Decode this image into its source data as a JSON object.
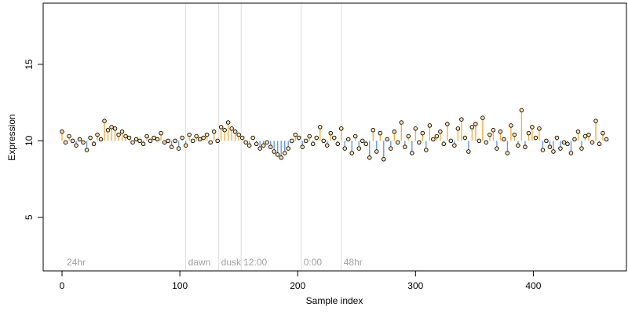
{
  "chart_data": {
    "type": "scatter",
    "title": "",
    "xlabel": "Sample index",
    "ylabel": "Expression",
    "xlim": [
      -16,
      479
    ],
    "ylim": [
      1.5,
      19.0
    ],
    "baseline": 10,
    "x_ticks": [
      0,
      100,
      200,
      300,
      400
    ],
    "x_tick_labels": [
      "0",
      "100",
      "200",
      "300",
      "400"
    ],
    "y_ticks": [
      5,
      10,
      15
    ],
    "y_tick_labels": [
      "5",
      "10",
      "15"
    ],
    "grid": false,
    "colors": {
      "above_baseline": "#F5B041",
      "below_baseline": "#6A9BE0",
      "point_fill": "#FFE3B3",
      "point_stroke": "#000000",
      "marker_line": "#DDDDDD",
      "marker_text": "#A0A0A0"
    },
    "annotations": [
      {
        "x": 2,
        "line": false,
        "label": "24hr"
      },
      {
        "x": 105,
        "line": true,
        "label": "dawn"
      },
      {
        "x": 133,
        "line": true,
        "label": "dusk"
      },
      {
        "x": 152,
        "line": true,
        "label": "12:00"
      },
      {
        "x": 203,
        "line": true,
        "label": "0:00"
      },
      {
        "x": 237,
        "line": true,
        "label": "48hr"
      }
    ],
    "series": [
      {
        "x": [
          0,
          3,
          6,
          9,
          12,
          15,
          18,
          21,
          24,
          27,
          30,
          33,
          36,
          39,
          42,
          45,
          48,
          51,
          54,
          57,
          60,
          63,
          66,
          69,
          72,
          75,
          78,
          81,
          84,
          87,
          90,
          93,
          96,
          99,
          102,
          105,
          108,
          111,
          114,
          117,
          120,
          123,
          126,
          129,
          132,
          135,
          138,
          141,
          144,
          147,
          150,
          153,
          156,
          159,
          162,
          165,
          168,
          171,
          174,
          177,
          180,
          183,
          186,
          189,
          192,
          195,
          198,
          201,
          204,
          207,
          210,
          213,
          216,
          219,
          222,
          225,
          228,
          231,
          234,
          237,
          240,
          243,
          246,
          249,
          252,
          255,
          258,
          261,
          264,
          267,
          270,
          273,
          276,
          279,
          282,
          285,
          288,
          291,
          294,
          297,
          300,
          303,
          306,
          309,
          312,
          315,
          318,
          321,
          324,
          327,
          330,
          333,
          336,
          339,
          342,
          345,
          348,
          351,
          354,
          357,
          360,
          363,
          366,
          369,
          372,
          375,
          378,
          381,
          384,
          387,
          390,
          393,
          396,
          399,
          402,
          405,
          408,
          411,
          414,
          417,
          420,
          423,
          426,
          429,
          432,
          435,
          438,
          441,
          444,
          447,
          450,
          453,
          456,
          459,
          462
        ],
        "y": [
          10.6,
          9.9,
          10.3,
          10.0,
          9.7,
          10.1,
          9.9,
          9.4,
          10.2,
          9.8,
          10.4,
          10.1,
          11.3,
          10.7,
          10.9,
          10.8,
          10.4,
          10.6,
          10.3,
          10.2,
          9.9,
          10.1,
          10.0,
          9.8,
          10.3,
          10.0,
          10.2,
          10.1,
          10.5,
          9.9,
          10.0,
          9.6,
          10.0,
          9.5,
          10.2,
          9.7,
          10.4,
          10.0,
          10.3,
          10.1,
          10.2,
          10.4,
          9.9,
          10.6,
          10.0,
          10.9,
          10.7,
          11.2,
          10.8,
          10.6,
          10.4,
          10.2,
          9.9,
          9.7,
          10.2,
          9.8,
          9.5,
          9.7,
          9.9,
          9.6,
          9.3,
          9.1,
          8.9,
          9.2,
          9.5,
          10.0,
          10.4,
          10.2,
          9.6,
          10.0,
          10.3,
          9.8,
          10.2,
          10.9,
          10.0,
          9.7,
          10.5,
          10.2,
          9.8,
          10.8,
          9.5,
          10.1,
          9.2,
          10.3,
          9.5,
          10.0,
          9.8,
          8.9,
          10.7,
          9.3,
          10.5,
          8.8,
          10.1,
          9.5,
          10.6,
          9.9,
          11.2,
          9.6,
          10.3,
          9.2,
          10.8,
          9.9,
          10.5,
          9.4,
          11.0,
          10.1,
          10.3,
          10.6,
          9.8,
          11.1,
          10.0,
          9.7,
          10.8,
          11.4,
          10.2,
          9.3,
          10.9,
          11.1,
          10.0,
          11.5,
          9.9,
          10.4,
          10.7,
          9.5,
          10.6,
          10.1,
          9.2,
          11.0,
          10.4,
          9.7,
          12.0,
          9.6,
          10.5,
          10.9,
          10.2,
          10.8,
          9.4,
          10.0,
          9.6,
          9.3,
          10.2,
          9.5,
          9.9,
          9.8,
          9.2,
          10.1,
          10.6,
          9.5,
          10.3,
          10.4,
          9.9,
          11.3,
          9.8,
          10.5,
          10.1
        ]
      }
    ]
  }
}
